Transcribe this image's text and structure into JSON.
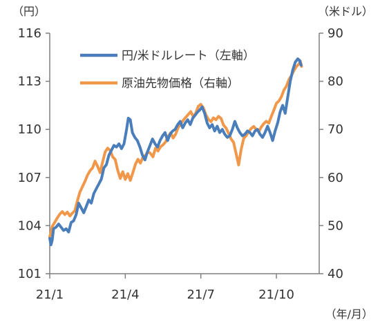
{
  "chart_data": {
    "type": "line",
    "y_unit_left": "（円）",
    "y_unit_right": "（米ドル）",
    "x_unit": "（年/月）",
    "x_ticks": [
      {
        "label": "21/1",
        "x": 0
      },
      {
        "label": "21/4",
        "x": 3
      },
      {
        "label": "21/7",
        "x": 6
      },
      {
        "label": "21/10",
        "x": 9
      }
    ],
    "xlim": [
      0,
      10.7
    ],
    "ylim_left": [
      101,
      116
    ],
    "ylim_right": [
      40,
      90
    ],
    "y_ticks_left": [
      101,
      104,
      107,
      110,
      113,
      116
    ],
    "y_ticks_right": [
      40,
      50,
      60,
      70,
      80,
      90
    ],
    "grid": false,
    "legend_position": "top-left",
    "series": [
      {
        "name": "円/米ドルレート（左軸）",
        "axis": "left",
        "color": "#4a7ebb",
        "points": [
          [
            0.0,
            103.2
          ],
          [
            0.05,
            102.8
          ],
          [
            0.1,
            103.1
          ],
          [
            0.15,
            103.8
          ],
          [
            0.25,
            103.9
          ],
          [
            0.35,
            104.1
          ],
          [
            0.45,
            103.9
          ],
          [
            0.55,
            103.7
          ],
          [
            0.65,
            103.8
          ],
          [
            0.75,
            103.6
          ],
          [
            0.85,
            104.2
          ],
          [
            0.95,
            104.3
          ],
          [
            1.05,
            104.7
          ],
          [
            1.15,
            105.4
          ],
          [
            1.25,
            105.1
          ],
          [
            1.35,
            104.8
          ],
          [
            1.45,
            105.2
          ],
          [
            1.55,
            105.6
          ],
          [
            1.65,
            105.4
          ],
          [
            1.75,
            106.0
          ],
          [
            1.85,
            106.3
          ],
          [
            1.95,
            106.6
          ],
          [
            2.05,
            106.9
          ],
          [
            2.15,
            107.6
          ],
          [
            2.25,
            107.8
          ],
          [
            2.35,
            108.4
          ],
          [
            2.45,
            108.7
          ],
          [
            2.55,
            109.0
          ],
          [
            2.65,
            108.9
          ],
          [
            2.75,
            109.1
          ],
          [
            2.85,
            108.8
          ],
          [
            2.95,
            109.1
          ],
          [
            3.05,
            110.0
          ],
          [
            3.12,
            110.7
          ],
          [
            3.2,
            110.6
          ],
          [
            3.28,
            109.8
          ],
          [
            3.38,
            109.5
          ],
          [
            3.48,
            109.3
          ],
          [
            3.58,
            108.9
          ],
          [
            3.68,
            108.4
          ],
          [
            3.78,
            108.1
          ],
          [
            3.88,
            108.6
          ],
          [
            3.98,
            109.0
          ],
          [
            4.08,
            109.4
          ],
          [
            4.18,
            109.1
          ],
          [
            4.28,
            108.9
          ],
          [
            4.38,
            109.3
          ],
          [
            4.48,
            109.6
          ],
          [
            4.58,
            109.8
          ],
          [
            4.68,
            109.3
          ],
          [
            4.78,
            109.7
          ],
          [
            4.88,
            109.9
          ],
          [
            4.98,
            110.0
          ],
          [
            5.08,
            110.3
          ],
          [
            5.18,
            110.5
          ],
          [
            5.28,
            110.1
          ],
          [
            5.38,
            110.4
          ],
          [
            5.48,
            110.6
          ],
          [
            5.58,
            110.3
          ],
          [
            5.68,
            110.7
          ],
          [
            5.78,
            110.9
          ],
          [
            5.88,
            111.1
          ],
          [
            5.95,
            111.2
          ],
          [
            6.05,
            111.4
          ],
          [
            6.15,
            111.0
          ],
          [
            6.25,
            110.4
          ],
          [
            6.35,
            110.1
          ],
          [
            6.45,
            110.3
          ],
          [
            6.55,
            109.9
          ],
          [
            6.65,
            110.2
          ],
          [
            6.75,
            109.8
          ],
          [
            6.85,
            110.0
          ],
          [
            6.95,
            109.7
          ],
          [
            7.05,
            109.5
          ],
          [
            7.15,
            109.6
          ],
          [
            7.25,
            110.0
          ],
          [
            7.35,
            110.5
          ],
          [
            7.45,
            110.1
          ],
          [
            7.55,
            109.8
          ],
          [
            7.65,
            109.6
          ],
          [
            7.75,
            109.7
          ],
          [
            7.85,
            109.9
          ],
          [
            7.95,
            109.8
          ],
          [
            8.05,
            109.6
          ],
          [
            8.15,
            109.9
          ],
          [
            8.25,
            110.0
          ],
          [
            8.35,
            109.7
          ],
          [
            8.45,
            109.5
          ],
          [
            8.55,
            109.8
          ],
          [
            8.65,
            110.2
          ],
          [
            8.75,
            109.8
          ],
          [
            8.85,
            109.3
          ],
          [
            8.95,
            109.9
          ],
          [
            9.05,
            110.4
          ],
          [
            9.15,
            111.1
          ],
          [
            9.25,
            111.5
          ],
          [
            9.35,
            111.0
          ],
          [
            9.45,
            112.0
          ],
          [
            9.55,
            113.0
          ],
          [
            9.65,
            113.7
          ],
          [
            9.75,
            114.2
          ],
          [
            9.85,
            114.4
          ],
          [
            9.92,
            114.3
          ],
          [
            9.98,
            114.0
          ]
        ]
      },
      {
        "name": "原油先物価格（右軸）",
        "axis": "right",
        "color": "#f0974a",
        "points": [
          [
            0.0,
            47.6
          ],
          [
            0.05,
            48.6
          ],
          [
            0.1,
            49.8
          ],
          [
            0.2,
            50.7
          ],
          [
            0.3,
            51.6
          ],
          [
            0.4,
            52.4
          ],
          [
            0.5,
            52.9
          ],
          [
            0.6,
            52.3
          ],
          [
            0.7,
            52.8
          ],
          [
            0.8,
            52.0
          ],
          [
            0.9,
            52.6
          ],
          [
            1.0,
            53.1
          ],
          [
            1.1,
            55.2
          ],
          [
            1.2,
            57.0
          ],
          [
            1.3,
            58.1
          ],
          [
            1.4,
            59.2
          ],
          [
            1.5,
            60.5
          ],
          [
            1.6,
            61.4
          ],
          [
            1.7,
            62.0
          ],
          [
            1.8,
            63.4
          ],
          [
            1.9,
            62.3
          ],
          [
            2.0,
            61.0
          ],
          [
            2.1,
            63.2
          ],
          [
            2.2,
            65.3
          ],
          [
            2.3,
            66.1
          ],
          [
            2.4,
            65.6
          ],
          [
            2.5,
            64.3
          ],
          [
            2.6,
            63.7
          ],
          [
            2.7,
            61.5
          ],
          [
            2.8,
            59.8
          ],
          [
            2.9,
            61.2
          ],
          [
            3.0,
            59.6
          ],
          [
            3.1,
            60.8
          ],
          [
            3.2,
            59.4
          ],
          [
            3.3,
            61.0
          ],
          [
            3.4,
            62.7
          ],
          [
            3.5,
            63.8
          ],
          [
            3.6,
            63.0
          ],
          [
            3.7,
            64.2
          ],
          [
            3.8,
            64.6
          ],
          [
            3.9,
            65.4
          ],
          [
            4.0,
            65.0
          ],
          [
            4.1,
            64.3
          ],
          [
            4.2,
            66.1
          ],
          [
            4.3,
            65.5
          ],
          [
            4.4,
            66.4
          ],
          [
            4.5,
            66.8
          ],
          [
            4.6,
            67.4
          ],
          [
            4.7,
            68.5
          ],
          [
            4.8,
            69.3
          ],
          [
            4.9,
            68.2
          ],
          [
            5.0,
            69.0
          ],
          [
            5.1,
            70.4
          ],
          [
            5.2,
            71.1
          ],
          [
            5.3,
            71.9
          ],
          [
            5.4,
            72.5
          ],
          [
            5.5,
            73.1
          ],
          [
            5.6,
            73.7
          ],
          [
            5.7,
            72.6
          ],
          [
            5.8,
            73.4
          ],
          [
            5.9,
            74.8
          ],
          [
            6.0,
            75.2
          ],
          [
            6.1,
            74.5
          ],
          [
            6.2,
            73.0
          ],
          [
            6.3,
            72.1
          ],
          [
            6.4,
            71.6
          ],
          [
            6.5,
            72.4
          ],
          [
            6.6,
            72.0
          ],
          [
            6.7,
            72.7
          ],
          [
            6.8,
            72.3
          ],
          [
            6.9,
            70.9
          ],
          [
            7.0,
            70.3
          ],
          [
            7.1,
            69.2
          ],
          [
            7.2,
            68.0
          ],
          [
            7.3,
            67.3
          ],
          [
            7.4,
            65.0
          ],
          [
            7.5,
            62.6
          ],
          [
            7.6,
            65.8
          ],
          [
            7.7,
            68.1
          ],
          [
            7.8,
            68.7
          ],
          [
            7.9,
            69.5
          ],
          [
            8.0,
            70.2
          ],
          [
            8.1,
            70.6
          ],
          [
            8.2,
            70.0
          ],
          [
            8.3,
            69.5
          ],
          [
            8.4,
            70.5
          ],
          [
            8.5,
            71.2
          ],
          [
            8.6,
            71.7
          ],
          [
            8.7,
            71.3
          ],
          [
            8.8,
            72.7
          ],
          [
            8.9,
            74.0
          ],
          [
            9.0,
            75.4
          ],
          [
            9.1,
            75.9
          ],
          [
            9.2,
            76.8
          ],
          [
            9.3,
            78.2
          ],
          [
            9.4,
            79.0
          ],
          [
            9.5,
            80.4
          ],
          [
            9.6,
            81.2
          ],
          [
            9.7,
            82.3
          ],
          [
            9.8,
            83.1
          ],
          [
            9.9,
            83.6
          ],
          [
            9.95,
            84.2
          ],
          [
            10.0,
            83.1
          ]
        ]
      }
    ]
  }
}
